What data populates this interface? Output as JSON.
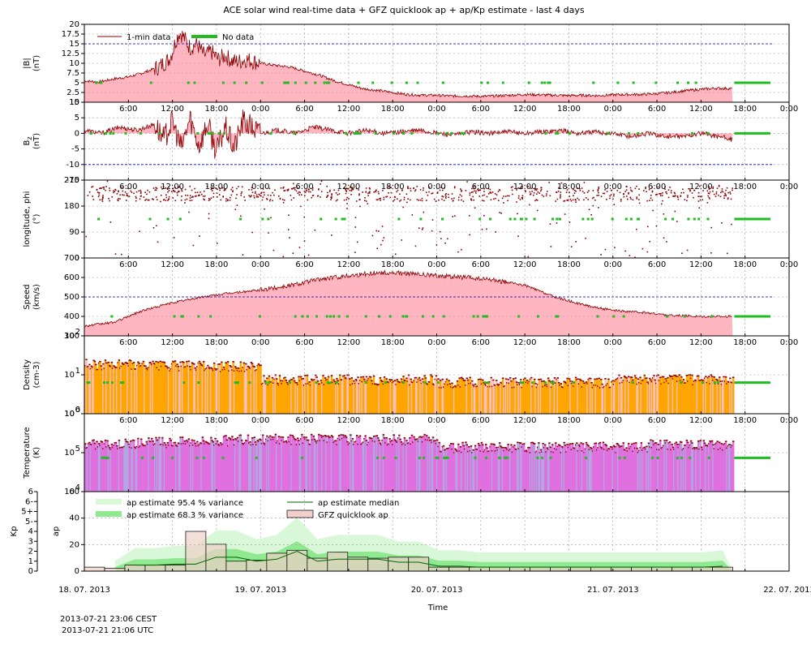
{
  "title": "ACE solar wind real-time data + GFZ quicklook ap + ap/Kp estimate - last 4 days",
  "xlabel": "Time",
  "timestamps": {
    "local": "2013-07-21 23:06 CEST",
    "utc": "2013-07-21 21:06 UTC"
  },
  "colors": {
    "data_line": "#8b0000",
    "no_data": "#22bb22",
    "ref_line": "#0000cc",
    "b_fill": "#ffb6c1",
    "speed_fill": "#ffb6c1",
    "density_fill": "#ffa500",
    "temperature_fill": "#e070e0",
    "ap_var95": "#d8f8d8",
    "ap_var68": "#90e890",
    "ap_median": "#006400",
    "ap_bar_fill": "#f0d0c8"
  },
  "chart_data": {
    "type": "line",
    "x_range_days": [
      0,
      4
    ],
    "date_ticks": [
      "18. 07. 2013",
      "19. 07. 2013",
      "20. 07. 2013",
      "21. 07. 2013",
      "22. 07. 2013"
    ],
    "hour_ticks": [
      "6:00",
      "12:00",
      "18:00",
      "0:00"
    ],
    "data_end_day": 3.68,
    "legend_top": [
      {
        "label": "1-min data",
        "color": "#8b0000"
      },
      {
        "label": "No data",
        "color": "#22bb22"
      }
    ],
    "legend_bottom": [
      {
        "label": "ap estimate 95.4 % variance",
        "color": "#d8f8d8"
      },
      {
        "label": "ap estimate median",
        "color": "#006400"
      },
      {
        "label": "ap estimate 68.3 % variance",
        "color": "#90e890"
      },
      {
        "label": "GFZ quicklook ap",
        "color": "#f0d0c8"
      }
    ],
    "panels": [
      {
        "id": "bt",
        "ylabel": [
          "|B|",
          "(nT)"
        ],
        "ticks": [
          "20",
          "17.5",
          "15",
          "12.5",
          "10",
          "7.5",
          "5",
          "2.5",
          "15"
        ],
        "ylim": [
          0,
          20
        ],
        "ref": [
          15
        ],
        "x": [
          0,
          0.08,
          0.17,
          0.25,
          0.33,
          0.42,
          0.48,
          0.5,
          0.52,
          0.54,
          0.56,
          0.6,
          0.64,
          0.68,
          0.72,
          0.76,
          0.8,
          0.84,
          0.88,
          0.92,
          0.96,
          1.0,
          1.08,
          1.17,
          1.25,
          1.33,
          1.42,
          1.5,
          1.58,
          1.67,
          1.75,
          1.83,
          1.92,
          2.0,
          2.08,
          2.17,
          2.25,
          2.33,
          2.42,
          2.5,
          2.58,
          2.67,
          2.75,
          2.83,
          2.92,
          3.0,
          3.08,
          3.17,
          3.25,
          3.33,
          3.42,
          3.5,
          3.58,
          3.68
        ],
        "y": [
          5.5,
          5.2,
          6,
          6.5,
          7.5,
          9,
          11,
          13,
          16,
          18,
          17,
          14,
          15,
          12,
          13,
          11,
          12,
          10.5,
          10.5,
          11,
          10.5,
          10,
          9.5,
          9,
          8,
          7,
          5.5,
          4.5,
          3.5,
          3,
          2.5,
          2,
          1.8,
          1.8,
          1.6,
          1.6,
          1.5,
          1.6,
          1.8,
          2,
          1.9,
          1.8,
          1.7,
          1.8,
          1.7,
          1.9,
          2,
          2,
          2.2,
          2.5,
          3,
          3.3,
          3.6,
          3.5
        ]
      },
      {
        "id": "bz",
        "ylabel": [
          "B",
          "(nT)"
        ],
        "ylabel_sub": "z",
        "ticks": [
          "10",
          "5",
          "0",
          "-5",
          "-10",
          "-15"
        ],
        "ylim": [
          -15,
          10
        ],
        "ref": [
          10,
          -10
        ],
        "x": [
          0,
          0.1,
          0.2,
          0.3,
          0.4,
          0.45,
          0.5,
          0.55,
          0.6,
          0.65,
          0.7,
          0.75,
          0.8,
          0.85,
          0.9,
          0.95,
          1.0,
          1.1,
          1.2,
          1.3,
          1.4,
          1.5,
          1.6,
          1.7,
          1.8,
          1.9,
          2.0,
          2.1,
          2.2,
          2.3,
          2.4,
          2.5,
          2.6,
          2.7,
          2.8,
          2.9,
          3.0,
          3.1,
          3.2,
          3.3,
          3.4,
          3.5,
          3.6,
          3.68
        ],
        "y": [
          1,
          0,
          2,
          1,
          3,
          -2,
          4,
          -5,
          5,
          -4,
          3,
          -6,
          2,
          -5,
          4,
          2,
          0,
          1,
          0,
          2,
          1,
          0,
          1,
          0,
          0.5,
          1,
          0,
          -0.5,
          0.5,
          0,
          0.5,
          0,
          0.5,
          1,
          0,
          0.5,
          0,
          -1,
          0,
          -1,
          -1,
          0,
          -1,
          -2
        ]
      },
      {
        "id": "phi",
        "ylabel": [
          "longitude, phi",
          "(°)"
        ],
        "ticks": [
          "270",
          "180",
          "90",
          "0"
        ],
        "ylim": [
          0,
          360
        ],
        "ref": []
      },
      {
        "id": "speed",
        "ylabel": [
          "Speed",
          "(km/s)"
        ],
        "ticks": [
          "700",
          "600",
          "500",
          "400",
          "300"
        ],
        "ylim": [
          300,
          700
        ],
        "ref": [
          500
        ],
        "x": [
          0,
          0.17,
          0.33,
          0.5,
          0.67,
          0.83,
          1.0,
          1.17,
          1.33,
          1.5,
          1.67,
          1.83,
          2.0,
          2.17,
          2.33,
          2.5,
          2.67,
          2.83,
          3.0,
          3.17,
          3.33,
          3.5,
          3.68
        ],
        "y": [
          350,
          370,
          430,
          470,
          500,
          520,
          535,
          560,
          590,
          610,
          625,
          620,
          610,
          600,
          585,
          560,
          500,
          460,
          430,
          420,
          405,
          400,
          400
        ]
      },
      {
        "id": "density",
        "ylabel": [
          "Density",
          "(cm-3)"
        ],
        "ticks": [
          "10^2",
          "10^1",
          "10^0"
        ],
        "ylim_log": [
          -1,
          2
        ]
      },
      {
        "id": "temperature",
        "ylabel": [
          "Temperature",
          "(K)"
        ],
        "ticks": [
          "10^6",
          "10^5",
          "10^4"
        ],
        "ylim_log": [
          3,
          6
        ]
      },
      {
        "id": "ap",
        "ylabel": [
          "Kp",
          "ap"
        ],
        "ticks": [
          "60",
          "40",
          "20",
          "0"
        ],
        "kp_ticks": [
          "6",
          "6-",
          "5+",
          "5-",
          "4",
          "3",
          "2",
          "1",
          "0"
        ],
        "ylim": [
          0,
          80
        ],
        "bars": [
          4,
          3,
          6,
          6,
          6,
          40,
          27,
          10,
          11,
          18,
          21,
          13,
          19,
          14,
          13,
          14,
          14,
          4,
          4,
          4,
          4,
          4,
          4,
          4,
          4,
          4,
          4,
          4,
          4,
          4,
          4,
          4
        ],
        "median": [
          null,
          null,
          6,
          6,
          7,
          7,
          14,
          14,
          10,
          12,
          20,
          10,
          12,
          12,
          12,
          9,
          9,
          5,
          5,
          4,
          4,
          4,
          4,
          4,
          4,
          4,
          4,
          4,
          4,
          4,
          4,
          5
        ]
      }
    ]
  }
}
